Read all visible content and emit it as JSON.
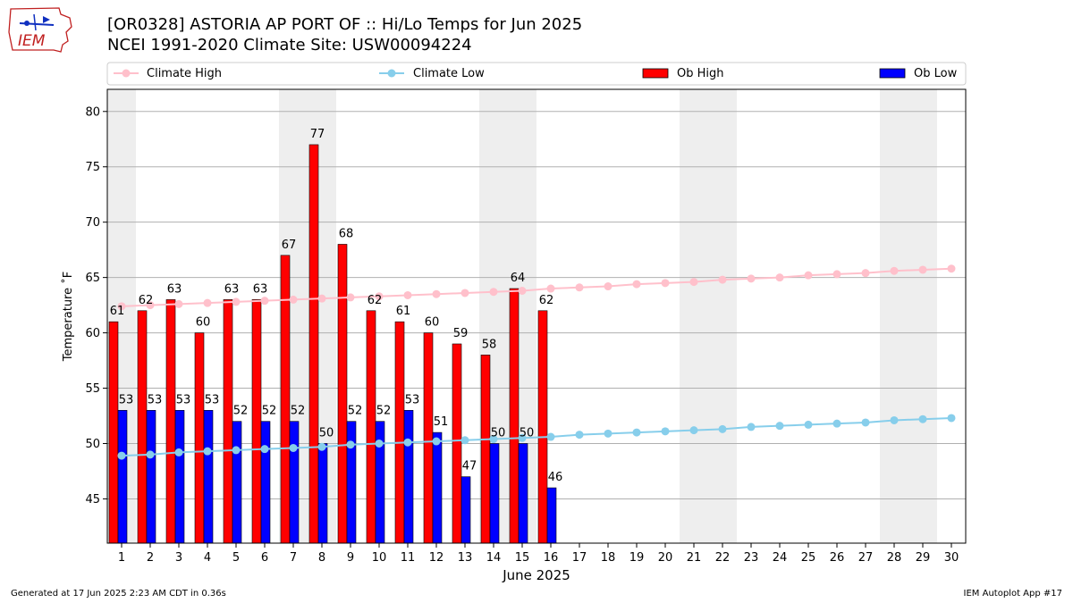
{
  "header": {
    "title_line1": "[OR0328] ASTORIA AP PORT OF :: Hi/Lo Temps for Jun 2025",
    "title_line2": "NCEI 1991-2020 Climate Site: USW00094224",
    "logo_text": "IEM"
  },
  "footer": {
    "generated": "Generated at 17 Jun 2025 2:23 AM CDT in 0.36s",
    "app": "IEM Autoplot App #17"
  },
  "colors": {
    "ob_high": "#ff0000",
    "ob_low": "#0000ff",
    "climate_high": "#ffc0cb",
    "climate_low": "#87ceeb",
    "weekend_band": "#eeeeee",
    "grid": "#b0b0b0"
  },
  "chart_data": {
    "type": "bar",
    "xlabel": "June 2025",
    "ylabel": "Temperature ˚F",
    "ylim": [
      41,
      82
    ],
    "yticks": [
      45,
      50,
      55,
      60,
      65,
      70,
      75,
      80
    ],
    "grid": "horizontal",
    "legend_placement": "top, above plot",
    "days": [
      1,
      2,
      3,
      4,
      5,
      6,
      7,
      8,
      9,
      10,
      11,
      12,
      13,
      14,
      15,
      16,
      17,
      18,
      19,
      20,
      21,
      22,
      23,
      24,
      25,
      26,
      27,
      28,
      29,
      30
    ],
    "weekend_days": [
      1,
      7,
      8,
      14,
      15,
      21,
      22,
      28,
      29
    ],
    "series": [
      {
        "name": "Climate High",
        "kind": "line",
        "values": [
          62.4,
          62.5,
          62.6,
          62.7,
          62.8,
          62.9,
          63.0,
          63.1,
          63.2,
          63.3,
          63.4,
          63.5,
          63.6,
          63.7,
          63.8,
          64.0,
          64.1,
          64.2,
          64.4,
          64.5,
          64.6,
          64.8,
          64.9,
          65.0,
          65.2,
          65.3,
          65.4,
          65.6,
          65.7,
          65.8
        ]
      },
      {
        "name": "Climate Low",
        "kind": "line",
        "values": [
          48.9,
          49.0,
          49.2,
          49.3,
          49.4,
          49.5,
          49.6,
          49.7,
          49.9,
          50.0,
          50.1,
          50.2,
          50.3,
          50.4,
          50.5,
          50.6,
          50.8,
          50.9,
          51.0,
          51.1,
          51.2,
          51.3,
          51.5,
          51.6,
          51.7,
          51.8,
          51.9,
          52.1,
          52.2,
          52.3
        ]
      },
      {
        "name": "Ob High",
        "kind": "bar",
        "values": [
          61,
          62,
          63,
          60,
          63,
          63,
          67,
          77,
          68,
          62,
          61,
          60,
          59,
          58,
          64,
          62
        ]
      },
      {
        "name": "Ob Low",
        "kind": "bar",
        "values": [
          53,
          53,
          53,
          53,
          52,
          52,
          52,
          50,
          52,
          52,
          53,
          51,
          47,
          50,
          50,
          46
        ]
      }
    ]
  }
}
